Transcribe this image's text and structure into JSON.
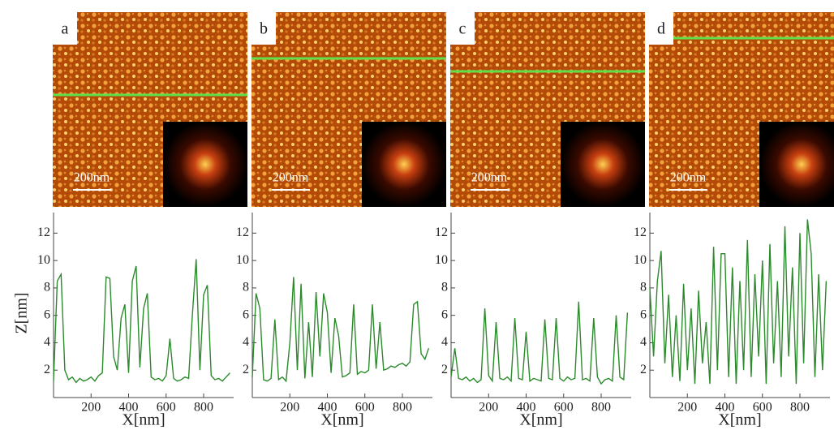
{
  "chart_data": [
    {
      "type": "line",
      "label": "a",
      "scale_bar": "200nm",
      "ylabel": "Z[nm]",
      "xlabel": "X[nm]",
      "xlim": [
        0,
        960
      ],
      "ylim": [
        0,
        13.5
      ],
      "xticks": [
        200,
        400,
        600,
        800
      ],
      "yticks": [
        2,
        4,
        6,
        8,
        10,
        12
      ],
      "x": [
        0,
        20,
        40,
        60,
        80,
        100,
        120,
        140,
        160,
        180,
        200,
        220,
        240,
        260,
        280,
        300,
        320,
        340,
        360,
        380,
        400,
        420,
        440,
        460,
        480,
        500,
        520,
        540,
        560,
        580,
        600,
        620,
        640,
        660,
        680,
        700,
        720,
        740,
        760,
        780,
        800,
        820,
        840,
        860,
        880,
        900,
        920,
        940
      ],
      "series": [
        {
          "color": "#2b8a2b",
          "values": [
            1.2,
            8.5,
            9.0,
            2.0,
            1.3,
            1.5,
            1.1,
            1.4,
            1.2,
            1.3,
            1.5,
            1.2,
            1.6,
            1.8,
            8.8,
            8.7,
            3.0,
            2.0,
            5.8,
            6.8,
            1.8,
            8.5,
            9.6,
            2.2,
            6.5,
            7.6,
            1.5,
            1.3,
            1.4,
            1.2,
            1.6,
            4.3,
            1.4,
            1.2,
            1.3,
            1.5,
            1.4,
            6.0,
            10.1,
            2.0,
            7.5,
            8.2,
            1.6,
            1.3,
            1.4,
            1.2,
            1.5,
            1.8
          ]
        }
      ]
    },
    {
      "type": "line",
      "label": "b",
      "scale_bar": "200nm",
      "xlabel": "X[nm]",
      "xlim": [
        0,
        960
      ],
      "ylim": [
        0,
        13.5
      ],
      "xticks": [
        200,
        400,
        600,
        800
      ],
      "yticks": [
        2,
        4,
        6,
        8,
        10,
        12
      ],
      "x": [
        0,
        20,
        40,
        60,
        80,
        100,
        120,
        140,
        160,
        180,
        200,
        220,
        240,
        260,
        280,
        300,
        320,
        340,
        360,
        380,
        400,
        420,
        440,
        460,
        480,
        500,
        520,
        540,
        560,
        580,
        600,
        620,
        640,
        660,
        680,
        700,
        720,
        740,
        760,
        780,
        800,
        820,
        840,
        860,
        880,
        900,
        920,
        940
      ],
      "series": [
        {
          "color": "#2b8a2b",
          "values": [
            1.5,
            7.6,
            6.5,
            1.3,
            1.2,
            1.4,
            5.7,
            1.3,
            1.5,
            1.2,
            4.0,
            8.8,
            2.0,
            8.3,
            1.4,
            5.5,
            1.5,
            7.7,
            3.0,
            7.6,
            6.2,
            1.8,
            5.8,
            4.5,
            1.5,
            1.6,
            1.8,
            6.8,
            1.7,
            1.9,
            1.8,
            2.0,
            6.8,
            2.1,
            5.5,
            2.0,
            2.1,
            2.3,
            2.2,
            2.4,
            2.5,
            2.3,
            2.6,
            6.8,
            7.0,
            3.2,
            2.8,
            3.6
          ]
        }
      ]
    },
    {
      "type": "line",
      "label": "c",
      "scale_bar": "200nm",
      "xlabel": "X[nm]",
      "xlim": [
        0,
        960
      ],
      "ylim": [
        0,
        13.5
      ],
      "xticks": [
        200,
        400,
        600,
        800
      ],
      "yticks": [
        2,
        4,
        6,
        8,
        10,
        12
      ],
      "x": [
        0,
        20,
        40,
        60,
        80,
        100,
        120,
        140,
        160,
        180,
        200,
        220,
        240,
        260,
        280,
        300,
        320,
        340,
        360,
        380,
        400,
        420,
        440,
        460,
        480,
        500,
        520,
        540,
        560,
        580,
        600,
        620,
        640,
        660,
        680,
        700,
        720,
        740,
        760,
        780,
        800,
        820,
        840,
        860,
        880,
        900,
        920,
        940
      ],
      "series": [
        {
          "color": "#2b8a2b",
          "values": [
            1.5,
            3.6,
            1.4,
            1.3,
            1.5,
            1.2,
            1.4,
            1.1,
            1.3,
            6.5,
            1.6,
            1.2,
            5.5,
            1.4,
            1.3,
            1.5,
            1.2,
            5.8,
            1.4,
            1.3,
            4.8,
            1.2,
            1.4,
            1.3,
            1.2,
            5.7,
            1.4,
            1.3,
            5.8,
            1.4,
            1.2,
            1.5,
            1.3,
            1.4,
            7.0,
            1.3,
            1.4,
            1.2,
            5.8,
            1.5,
            1.0,
            1.3,
            1.4,
            1.2,
            6.0,
            1.5,
            1.3,
            6.2
          ]
        }
      ]
    },
    {
      "type": "line",
      "label": "d",
      "scale_bar": "200nm",
      "xlabel": "X[nm]",
      "xlim": [
        0,
        960
      ],
      "ylim": [
        0,
        13.5
      ],
      "xticks": [
        200,
        400,
        600,
        800
      ],
      "yticks": [
        2,
        4,
        6,
        8,
        10,
        12
      ],
      "x": [
        0,
        20,
        40,
        60,
        80,
        100,
        120,
        140,
        160,
        180,
        200,
        220,
        240,
        260,
        280,
        300,
        320,
        340,
        360,
        380,
        400,
        420,
        440,
        460,
        480,
        500,
        520,
        540,
        560,
        580,
        600,
        620,
        640,
        660,
        680,
        700,
        720,
        740,
        760,
        780,
        800,
        820,
        840,
        860,
        880,
        900,
        920,
        940
      ],
      "series": [
        {
          "color": "#2b8a2b",
          "values": [
            8.0,
            3.0,
            8.5,
            10.7,
            2.5,
            7.5,
            1.5,
            6.0,
            1.2,
            8.3,
            2.0,
            6.5,
            1.0,
            7.8,
            2.5,
            5.5,
            1.0,
            11.0,
            2.0,
            10.5,
            10.5,
            1.5,
            9.5,
            1.0,
            8.5,
            2.0,
            11.5,
            1.5,
            9.0,
            3.0,
            10.0,
            1.0,
            11.2,
            2.5,
            8.5,
            1.5,
            12.5,
            3.0,
            9.5,
            1.0,
            12.0,
            2.5,
            13.0,
            10.5,
            1.5,
            9.0,
            2.0,
            8.5
          ]
        }
      ]
    }
  ]
}
